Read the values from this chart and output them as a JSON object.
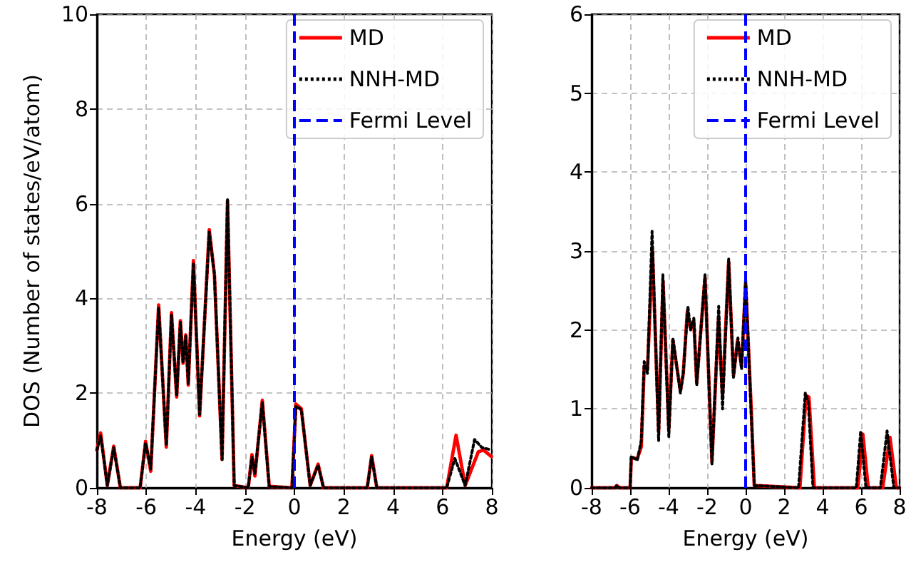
{
  "chart_data": [
    {
      "type": "line",
      "xlabel": "Energy (eV)",
      "ylabel": "DOS (Number of states/eV/atom)",
      "xlim": [
        -8,
        8
      ],
      "xticks": [
        -8,
        -6,
        -4,
        -2,
        0,
        2,
        4,
        6,
        8
      ],
      "ylim": [
        0,
        10
      ],
      "yticks": [
        0,
        2,
        4,
        6,
        8,
        10
      ],
      "grid": true,
      "legend": "top right",
      "marker": "none",
      "series": [
        {
          "name": "MD",
          "color": "#ff0000",
          "line_style": "solid",
          "x": [
            -8,
            -7.85,
            -7.58,
            -7.32,
            -7.05,
            -6.25,
            -6.03,
            -5.82,
            -5.5,
            -5.19,
            -4.98,
            -4.77,
            -4.62,
            -4.51,
            -4.4,
            -4.3,
            -4.09,
            -3.84,
            -3.45,
            -3.24,
            -2.93,
            -2.71,
            -2.44,
            -1.87,
            -1.72,
            -1.6,
            -1.3,
            -1.02,
            -0.1,
            0.06,
            0.28,
            0.64,
            0.96,
            1.18,
            2.95,
            3.13,
            3.34,
            6.17,
            6.55,
            6.92,
            7.45,
            7.66,
            7.98
          ],
          "values": [
            0.8,
            1.16,
            0.05,
            0.88,
            0,
            0,
            0.98,
            0.35,
            3.86,
            0.86,
            3.7,
            1.92,
            3.53,
            2.63,
            3.23,
            2.17,
            4.8,
            1.52,
            5.45,
            4.5,
            0.6,
            6.06,
            0.05,
            0,
            0.7,
            0.25,
            1.85,
            0.03,
            0,
            1.77,
            1.67,
            0.05,
            0.5,
            0,
            0,
            0.68,
            0,
            0,
            1.11,
            0.05,
            0.76,
            0.8,
            0.66
          ]
        },
        {
          "name": "NNH-MD",
          "color": "#000000",
          "line_style": "dotted",
          "x": [
            -8,
            -7.85,
            -7.58,
            -7.32,
            -7.05,
            -6.25,
            -6.03,
            -5.82,
            -5.5,
            -5.19,
            -4.98,
            -4.77,
            -4.62,
            -4.51,
            -4.4,
            -4.3,
            -4.09,
            -3.84,
            -3.45,
            -3.24,
            -2.93,
            -2.71,
            -2.44,
            -1.87,
            -1.72,
            -1.6,
            -1.3,
            -1.02,
            -0.1,
            0.06,
            0.28,
            0.64,
            0.96,
            1.18,
            2.95,
            3.13,
            3.34,
            6.17,
            6.5,
            6.92,
            7.3,
            7.6,
            7.98
          ],
          "values": [
            0.8,
            1.1,
            0.05,
            0.85,
            0,
            0,
            0.95,
            0.4,
            3.8,
            0.9,
            3.65,
            1.95,
            3.5,
            2.65,
            3.2,
            2.2,
            4.75,
            1.55,
            5.4,
            4.5,
            0.6,
            6.1,
            0.05,
            0,
            0.65,
            0.3,
            1.8,
            0.03,
            0,
            1.72,
            1.65,
            0.05,
            0.48,
            0,
            0,
            0.65,
            0,
            0,
            0.62,
            0.05,
            1.02,
            0.85,
            0.8
          ]
        }
      ],
      "ref_lines": [
        {
          "axis": "x",
          "value": 0,
          "label": "Fermi Level",
          "color": "#0000ff",
          "line_style": "dashed"
        }
      ]
    },
    {
      "type": "line",
      "xlabel": "Energy (eV)",
      "xlim": [
        -8,
        8
      ],
      "xticks": [
        -8,
        -6,
        -4,
        -2,
        0,
        2,
        4,
        6,
        8
      ],
      "ylim": [
        0,
        6
      ],
      "yticks": [
        0,
        1,
        2,
        3,
        4,
        5,
        6
      ],
      "grid": true,
      "legend": "top right",
      "marker": "none",
      "series": [
        {
          "name": "MD",
          "color": "#ff0000",
          "line_style": "solid",
          "x": [
            -8,
            -6.8,
            -6.69,
            -6.55,
            -6.0,
            -5.94,
            -5.63,
            -5.42,
            -5.27,
            -5.1,
            -4.84,
            -4.52,
            -4.29,
            -3.99,
            -3.78,
            -3.39,
            -3.24,
            -3.03,
            -2.86,
            -2.69,
            -2.54,
            -2.11,
            -1.75,
            -1.41,
            -1.2,
            -0.88,
            -0.63,
            -0.42,
            -0.21,
            0,
            0.28,
            0.45,
            2.82,
            3.14,
            3.29,
            3.57,
            5.83,
            6.09,
            6.37,
            7.12,
            7.5,
            7.83,
            8
          ],
          "values": [
            0,
            0,
            0.03,
            0,
            0,
            0.38,
            0.37,
            0.52,
            1.54,
            1.5,
            3.0,
            0.72,
            2.62,
            0.75,
            1.87,
            1.23,
            1.45,
            2.23,
            2.02,
            2.11,
            1.33,
            2.67,
            0.33,
            2.14,
            1.17,
            2.86,
            1.42,
            1.87,
            1.54,
            2.59,
            1.06,
            0.03,
            0,
            1.17,
            1.15,
            0,
            0,
            0.68,
            0,
            0,
            0.64,
            0,
            0
          ]
        },
        {
          "name": "NNH-MD",
          "color": "#000000",
          "line_style": "dotted",
          "x": [
            -8,
            -6.8,
            -6.69,
            -6.55,
            -6.0,
            -5.94,
            -5.63,
            -5.42,
            -5.27,
            -5.1,
            -4.86,
            -4.52,
            -4.3,
            -3.99,
            -3.78,
            -3.39,
            -3.24,
            -3.0,
            -2.86,
            -2.69,
            -2.54,
            -2.11,
            -1.75,
            -1.4,
            -1.2,
            -0.88,
            -0.63,
            -0.4,
            -0.21,
            0,
            0.28,
            0.45,
            2.75,
            3.1,
            3.25,
            3.5,
            5.75,
            5.98,
            6.25,
            7.0,
            7.35,
            7.7,
            8
          ],
          "values": [
            0,
            0,
            0.03,
            0,
            0,
            0.4,
            0.35,
            0.6,
            1.6,
            1.45,
            3.25,
            0.6,
            2.7,
            0.65,
            1.9,
            1.2,
            1.45,
            2.3,
            2.0,
            2.15,
            1.3,
            2.7,
            0.3,
            2.3,
            1.0,
            2.9,
            1.4,
            1.9,
            1.5,
            2.65,
            1.0,
            0.03,
            0,
            1.2,
            1.1,
            0,
            0,
            0.72,
            0,
            0,
            0.72,
            0,
            0
          ]
        }
      ],
      "ref_lines": [
        {
          "axis": "x",
          "value": 0,
          "label": "Fermi Level",
          "color": "#0000ff",
          "line_style": "dashed"
        }
      ]
    }
  ]
}
